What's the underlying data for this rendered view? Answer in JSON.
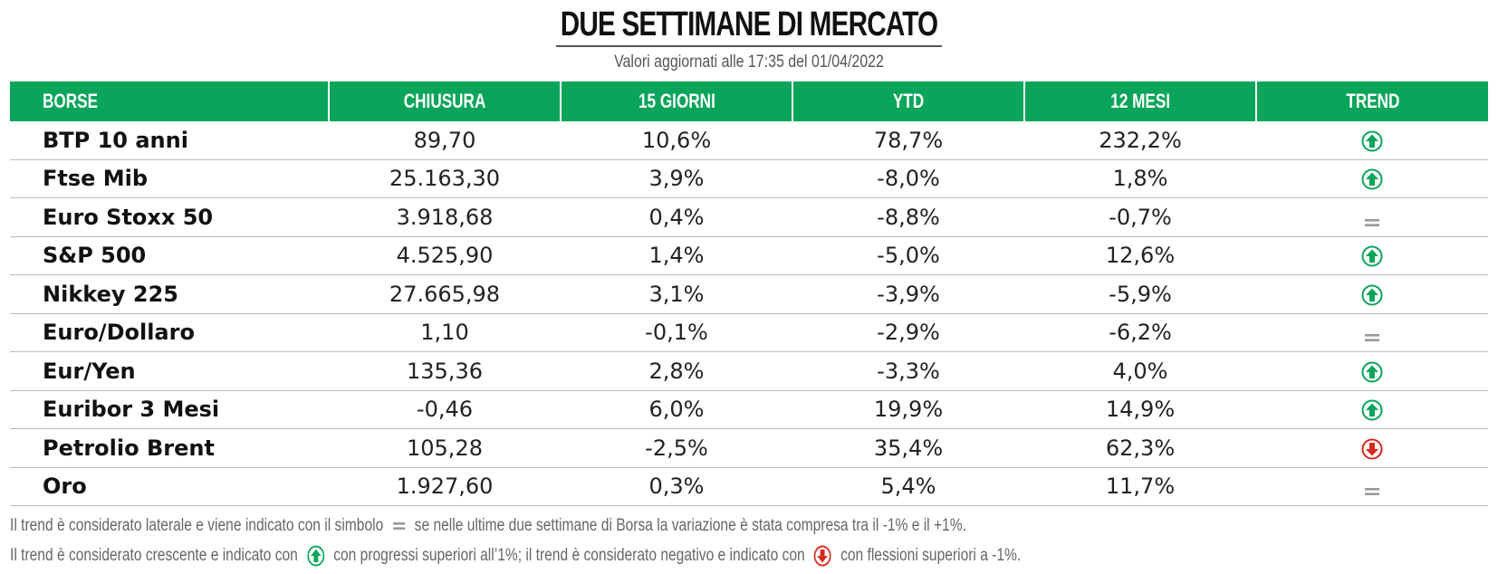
{
  "header": {
    "title": "DUE SETTIMANE DI MERCATO",
    "subtitle": "Valori aggiornati alle 17:35 del 01/04/2022"
  },
  "colors": {
    "header_bg": "#0aa55a",
    "trend_up": "#0aa55a",
    "trend_down": "#d9291c",
    "neutral": "#999999"
  },
  "table": {
    "columns": [
      "BORSE",
      "CHIUSURA",
      "15 GIORNI",
      "YTD",
      "12 MESI",
      "TREND"
    ],
    "rows": [
      {
        "name": "BTP 10 anni",
        "chiusura": "89,70",
        "giorni15": "10,6%",
        "ytd": "78,7%",
        "mesi12": "232,2%",
        "trend": "up-arrow-icon"
      },
      {
        "name": "Ftse Mib",
        "chiusura": "25.163,30",
        "giorni15": "3,9%",
        "ytd": "-8,0%",
        "mesi12": "1,8%",
        "trend": "up-arrow-icon"
      },
      {
        "name": "Euro Stoxx 50",
        "chiusura": "3.918,68",
        "giorni15": "0,4%",
        "ytd": "-8,8%",
        "mesi12": "-0,7%",
        "trend": "equals-icon"
      },
      {
        "name": "S&P 500",
        "chiusura": "4.525,90",
        "giorni15": "1,4%",
        "ytd": "-5,0%",
        "mesi12": "12,6%",
        "trend": "up-arrow-icon"
      },
      {
        "name": "Nikkey 225",
        "chiusura": "27.665,98",
        "giorni15": "3,1%",
        "ytd": "-3,9%",
        "mesi12": "-5,9%",
        "trend": "up-arrow-icon"
      },
      {
        "name": "Euro/Dollaro",
        "chiusura": "1,10",
        "giorni15": "-0,1%",
        "ytd": "-2,9%",
        "mesi12": "-6,2%",
        "trend": "equals-icon"
      },
      {
        "name": "Eur/Yen",
        "chiusura": "135,36",
        "giorni15": "2,8%",
        "ytd": "-3,3%",
        "mesi12": "4,0%",
        "trend": "up-arrow-icon"
      },
      {
        "name": "Euribor 3 Mesi",
        "chiusura": "-0,46",
        "giorni15": "6,0%",
        "ytd": "19,9%",
        "mesi12": "14,9%",
        "trend": "up-arrow-icon"
      },
      {
        "name": "Petrolio Brent",
        "chiusura": "105,28",
        "giorni15": "-2,5%",
        "ytd": "35,4%",
        "mesi12": "62,3%",
        "trend": "down-arrow-icon"
      },
      {
        "name": "Oro",
        "chiusura": "1.927,60",
        "giorni15": "0,3%",
        "ytd": "5,4%",
        "mesi12": "11,7%",
        "trend": "equals-icon"
      }
    ]
  },
  "footnotes": {
    "line1_a": "Il trend è considerato laterale e viene indicato con il simbolo",
    "line1_b": "se nelle ultime due settimane di Borsa la variazione è stata compresa tra il -1% e il +1%.",
    "line2_a": "Il trend è considerato crescente e indicato con",
    "line2_b": "con progressi superiori all’1%; il trend è considerato negativo e indicato con",
    "line2_c": "con flessioni superiori a -1%."
  }
}
